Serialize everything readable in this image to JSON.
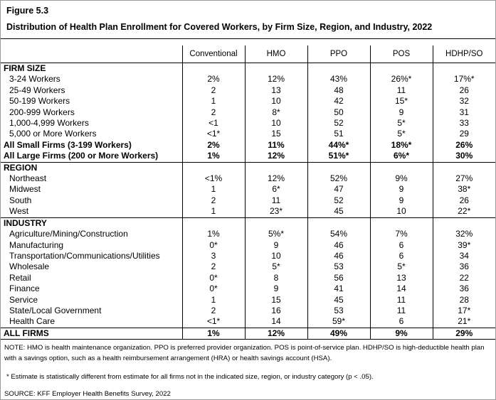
{
  "figure": {
    "label": "Figure 5.3",
    "title": "Distribution of Health Plan Enrollment for Covered Workers, by Firm Size, Region, and Industry, 2022"
  },
  "table": {
    "columns": [
      "Conventional",
      "HMO",
      "PPO",
      "POS",
      "HDHP/SO"
    ],
    "sections": [
      {
        "title": "FIRM SIZE",
        "title_values": [
          "",
          "",
          "",
          "",
          ""
        ],
        "rows": [
          {
            "label": "3-24 Workers",
            "values": [
              "2%",
              "12%",
              "43%",
              "26%*",
              "17%*"
            ],
            "indent": true,
            "bold": false
          },
          {
            "label": "25-49 Workers",
            "values": [
              "2",
              "13",
              "48",
              "11",
              "26"
            ],
            "indent": true,
            "bold": false
          },
          {
            "label": "50-199 Workers",
            "values": [
              "1",
              "10",
              "42",
              "15*",
              "32"
            ],
            "indent": true,
            "bold": false
          },
          {
            "label": "200-999 Workers",
            "values": [
              "2",
              "8*",
              "50",
              "9",
              "31"
            ],
            "indent": true,
            "bold": false
          },
          {
            "label": "1,000-4,999 Workers",
            "values": [
              "<1",
              "10",
              "52",
              "5*",
              "33"
            ],
            "indent": true,
            "bold": false
          },
          {
            "label": "5,000 or More Workers",
            "values": [
              "<1*",
              "15",
              "51",
              "5*",
              "29"
            ],
            "indent": true,
            "bold": false
          },
          {
            "label": "All Small Firms (3-199 Workers)",
            "values": [
              "2%",
              "11%",
              "44%*",
              "18%*",
              "26%"
            ],
            "indent": false,
            "bold": true
          },
          {
            "label": "All Large Firms (200 or More Workers)",
            "values": [
              "1%",
              "12%",
              "51%*",
              "6%*",
              "30%"
            ],
            "indent": false,
            "bold": true
          }
        ]
      },
      {
        "title": "REGION",
        "title_values": [
          "",
          "",
          "",
          "",
          ""
        ],
        "rows": [
          {
            "label": "Northeast",
            "values": [
              "<1%",
              "12%",
              "52%",
              "9%",
              "27%"
            ],
            "indent": true,
            "bold": false
          },
          {
            "label": "Midwest",
            "values": [
              "1",
              "6*",
              "47",
              "9",
              "38*"
            ],
            "indent": true,
            "bold": false
          },
          {
            "label": "South",
            "values": [
              "2",
              "11",
              "52",
              "9",
              "26"
            ],
            "indent": true,
            "bold": false
          },
          {
            "label": "West",
            "values": [
              "1",
              "23*",
              "45",
              "10",
              "22*"
            ],
            "indent": true,
            "bold": false
          }
        ]
      },
      {
        "title": "INDUSTRY",
        "title_values": [
          "",
          "",
          "",
          "",
          ""
        ],
        "rows": [
          {
            "label": "Agriculture/Mining/Construction",
            "values": [
              "1%",
              "5%*",
              "54%",
              "7%",
              "32%"
            ],
            "indent": true,
            "bold": false
          },
          {
            "label": "Manufacturing",
            "values": [
              "0*",
              "9",
              "46",
              "6",
              "39*"
            ],
            "indent": true,
            "bold": false
          },
          {
            "label": "Transportation/Communications/Utilities",
            "values": [
              "3",
              "10",
              "46",
              "6",
              "34"
            ],
            "indent": true,
            "bold": false
          },
          {
            "label": "Wholesale",
            "values": [
              "2",
              "5*",
              "53",
              "5*",
              "36"
            ],
            "indent": true,
            "bold": false
          },
          {
            "label": "Retail",
            "values": [
              "0*",
              "8",
              "56",
              "13",
              "22"
            ],
            "indent": true,
            "bold": false
          },
          {
            "label": "Finance",
            "values": [
              "0*",
              "9",
              "41",
              "14",
              "36"
            ],
            "indent": true,
            "bold": false
          },
          {
            "label": "Service",
            "values": [
              "1",
              "15",
              "45",
              "11",
              "28"
            ],
            "indent": true,
            "bold": false
          },
          {
            "label": "State/Local Government",
            "values": [
              "2",
              "16",
              "53",
              "11",
              "17*"
            ],
            "indent": true,
            "bold": false
          },
          {
            "label": "Health Care",
            "values": [
              "<1*",
              "14",
              "59*",
              "6",
              "21*"
            ],
            "indent": true,
            "bold": false
          }
        ]
      },
      {
        "title": "ALL FIRMS",
        "title_values": [
          "1%",
          "12%",
          "49%",
          "9%",
          "29%"
        ],
        "rows": []
      }
    ]
  },
  "notes": {
    "abbreviations": "NOTE: HMO is health maintenance organization. PPO is preferred provider organization. POS is point-of-service plan. HDHP/SO is high-deductible health plan with a savings option, such as a health reimbursement arrangement (HRA) or health savings account (HSA).",
    "estimate": "* Estimate is statistically different from estimate for all firms not in the indicated size, region, or industry category (p < .05).",
    "source": "SOURCE: KFF Employer Health Benefits Survey, 2022"
  }
}
